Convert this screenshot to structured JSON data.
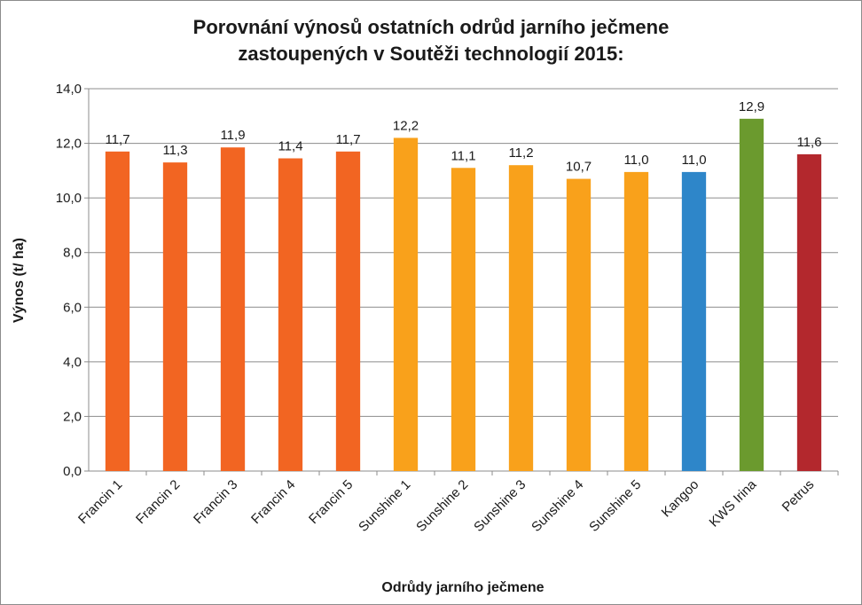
{
  "chart_data": {
    "type": "bar",
    "title_lines": [
      "Porovnání výnosů ostatních odrůd jarního ječmene",
      "zastoupených v Soutěži technologií 2015:"
    ],
    "xlabel": "Odrůdy jarního ječmene",
    "ylabel": "Výnos (t/ ha)",
    "ylim": [
      0,
      14
    ],
    "yticks": [
      "0,0",
      "2,0",
      "4,0",
      "6,0",
      "8,0",
      "10,0",
      "12,0",
      "14,0"
    ],
    "grid": true,
    "legend": "none",
    "categories": [
      "Francin 1",
      "Francin 2",
      "Francin 3",
      "Francin 4",
      "Francin 5",
      "Sunshine 1",
      "Sunshine 2",
      "Sunshine 3",
      "Sunshine 4",
      "Sunshine 5",
      "Kangoo",
      "KWS Irina",
      "Petrus"
    ],
    "values": [
      11.7,
      11.3,
      11.85,
      11.45,
      11.7,
      12.2,
      11.1,
      11.2,
      10.7,
      10.95,
      10.95,
      12.9,
      11.6
    ],
    "data_labels": [
      "11,7",
      "11,3",
      "11,9",
      "11,4",
      "11,7",
      "12,2",
      "11,1",
      "11,2",
      "10,7",
      "11,0",
      "11,0",
      "12,9",
      "11,6"
    ],
    "colors": [
      "#f26522",
      "#f26522",
      "#f26522",
      "#f26522",
      "#f26522",
      "#f9a11b",
      "#f9a11b",
      "#f9a11b",
      "#f9a11b",
      "#f9a11b",
      "#2e86c9",
      "#6b9a2e",
      "#b3282d"
    ]
  }
}
